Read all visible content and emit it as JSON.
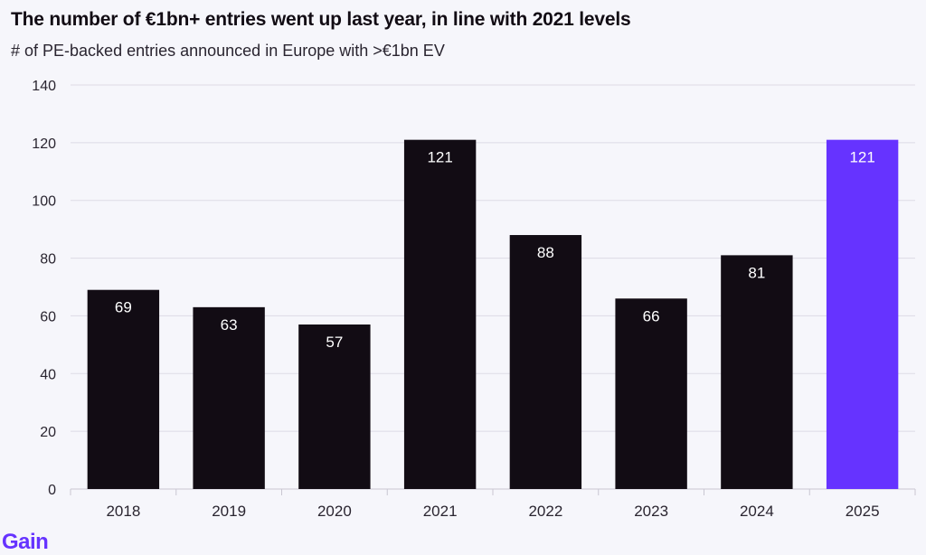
{
  "header": {
    "title": "The number of €1bn+ entries went up last year, in line with 2021 levels",
    "subtitle": "# of PE-backed entries announced in Europe with >€1bn EV"
  },
  "brand": {
    "logo_text": "Gain",
    "accent_color": "#6633ff"
  },
  "chart_data": {
    "type": "bar",
    "title": "The number of €1bn+ entries went up last year, in line with 2021 levels",
    "subtitle": "# of PE-backed entries announced in Europe with >€1bn EV",
    "xlabel": "",
    "ylabel": "",
    "categories": [
      "2018",
      "2019",
      "2020",
      "2021",
      "2022",
      "2023",
      "2024",
      "2025"
    ],
    "values": [
      69,
      63,
      57,
      121,
      88,
      66,
      81,
      121
    ],
    "ylim": [
      0,
      140
    ],
    "yticks": [
      0,
      20,
      40,
      60,
      80,
      100,
      120,
      140
    ],
    "grid": true,
    "legend": "none",
    "bar_color": "#120c14",
    "highlight_color": "#6633ff",
    "highlight_category": "2025",
    "label_color": "#ffffff"
  }
}
